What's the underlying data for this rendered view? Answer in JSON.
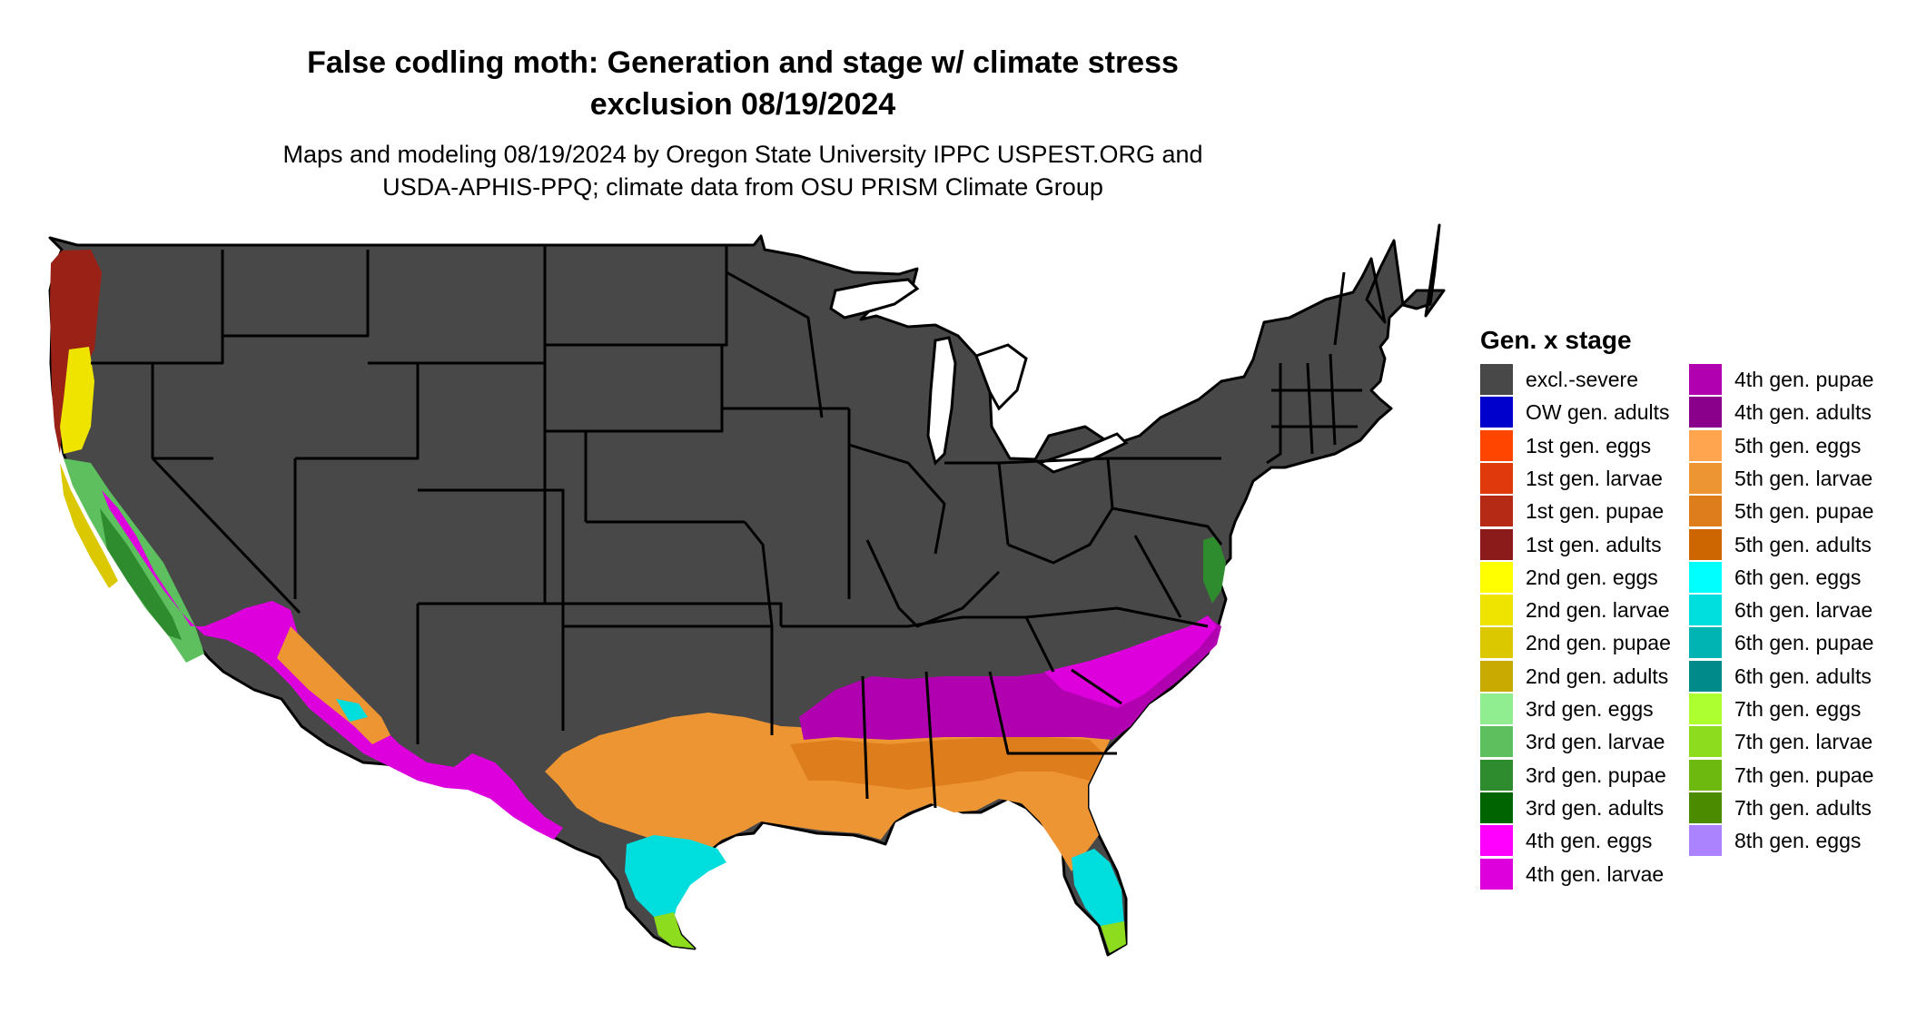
{
  "title_line1": "False codling moth: Generation and stage w/ climate stress",
  "title_line2": "exclusion 08/19/2024",
  "subtitle_line1": "Maps and modeling 08/19/2024 by Oregon State University IPPC USPEST.ORG and",
  "subtitle_line2": "USDA-APHIS-PPQ; climate data from OSU PRISM Climate Group",
  "map": {
    "background_color": "#484848",
    "border_color": "#000000"
  },
  "legend": {
    "title": "Gen. x stage",
    "items": [
      {
        "label": "excl.-severe",
        "color": "#484848"
      },
      {
        "label": "OW gen. adults",
        "color": "#0000cd"
      },
      {
        "label": "1st gen. eggs",
        "color": "#ff4500"
      },
      {
        "label": "1st gen. larvae",
        "color": "#e0390b"
      },
      {
        "label": "1st gen. pupae",
        "color": "#b52a14"
      },
      {
        "label": "1st gen. adults",
        "color": "#8b1a1a"
      },
      {
        "label": "2nd gen. eggs",
        "color": "#ffff00"
      },
      {
        "label": "2nd gen. larvae",
        "color": "#eee400"
      },
      {
        "label": "2nd gen. pupae",
        "color": "#dcc800"
      },
      {
        "label": "2nd gen. adults",
        "color": "#c9aa00"
      },
      {
        "label": "3rd gen. eggs",
        "color": "#90ee90"
      },
      {
        "label": "3rd gen. larvae",
        "color": "#5dbf5d"
      },
      {
        "label": "3rd gen. pupae",
        "color": "#2e8b2e"
      },
      {
        "label": "3rd gen. adults",
        "color": "#006400"
      },
      {
        "label": "4th gen. eggs",
        "color": "#ff00ff"
      },
      {
        "label": "4th gen. larvae",
        "color": "#dd00dd"
      },
      {
        "label": "4th gen. pupae",
        "color": "#b000b0"
      },
      {
        "label": "4th gen. adults",
        "color": "#8b008b"
      },
      {
        "label": "5th gen. eggs",
        "color": "#ffa54f"
      },
      {
        "label": "5th gen. larvae",
        "color": "#ee9533"
      },
      {
        "label": "5th gen. pupae",
        "color": "#dd7d1c"
      },
      {
        "label": "5th gen. adults",
        "color": "#cd6600"
      },
      {
        "label": "6th gen. eggs",
        "color": "#00ffff"
      },
      {
        "label": "6th gen. larvae",
        "color": "#00dddd"
      },
      {
        "label": "6th gen. pupae",
        "color": "#00b4b4"
      },
      {
        "label": "6th gen. adults",
        "color": "#008b8b"
      },
      {
        "label": "7th gen. eggs",
        "color": "#adff2f"
      },
      {
        "label": "7th gen. larvae",
        "color": "#8edc1e"
      },
      {
        "label": "7th gen. pupae",
        "color": "#6eb90f"
      },
      {
        "label": "7th gen. adults",
        "color": "#4a8b00"
      },
      {
        "label": "8th gen. eggs",
        "color": "#ab82ff"
      }
    ]
  }
}
